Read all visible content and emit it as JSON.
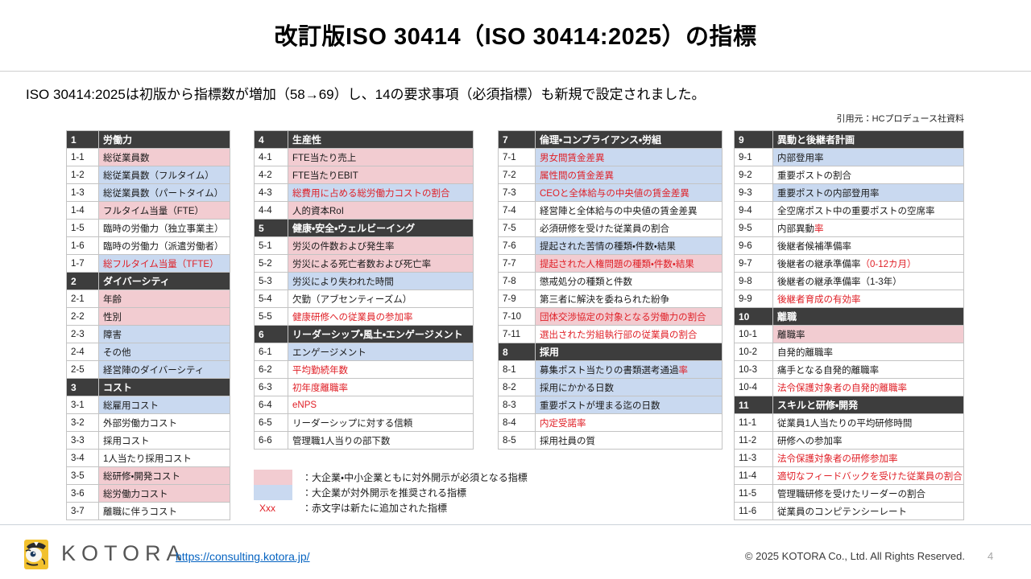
{
  "title": "改訂版ISO 30414（ISO 30414:2025）の指標",
  "subtitle": "ISO 30414:2025は初版から指標数が増加（58→69）し、14の要求事項（必須指標）も新規で設定されました。",
  "source_note": "引用元：HCプロデュース社資料",
  "colors": {
    "mandatory_pink": "#f2ccd1",
    "recommended_blue": "#c9d9f0",
    "section_header_bg": "#3d3d3d",
    "added_red": "#e01f26",
    "link_blue": "#0563c1",
    "logo_yellow": "#f2c12e"
  },
  "legend": [
    {
      "swatch": "pink",
      "label": "：大企業・中小企業ともに対外開示が必須となる指標"
    },
    {
      "swatch": "blue",
      "label": "：大企業が対外開示を推奨される指標"
    },
    {
      "swatch": "red-text",
      "swatch_text": "Xxx",
      "label": "：赤文字は新たに追加された指標"
    }
  ],
  "tables": [
    {
      "sections": [
        {
          "num": "1",
          "title": "労働力",
          "rows": [
            {
              "num": "1-1",
              "bg": "pink",
              "text": "総従業員数"
            },
            {
              "num": "1-2",
              "bg": "blue",
              "text": "総従業員数（フルタイム）"
            },
            {
              "num": "1-3",
              "bg": "blue",
              "text": "総従業員数（パートタイム）"
            },
            {
              "num": "1-4",
              "bg": "pink",
              "text": "フルタイム当量（FTE）"
            },
            {
              "num": "1-5",
              "bg": "none",
              "text": "臨時の労働力（独立事業主）"
            },
            {
              "num": "1-6",
              "bg": "none",
              "text": "臨時の労働力（派遣労働者）"
            },
            {
              "num": "1-7",
              "bg": "blue",
              "text": "総フルタイム当量（TFTE）",
              "red": true
            }
          ]
        },
        {
          "num": "2",
          "title": "ダイバーシティ",
          "rows": [
            {
              "num": "2-1",
              "bg": "pink",
              "text": "年齢"
            },
            {
              "num": "2-2",
              "bg": "pink",
              "text": "性別"
            },
            {
              "num": "2-3",
              "bg": "blue",
              "text": "障害"
            },
            {
              "num": "2-4",
              "bg": "blue",
              "text": "その他"
            },
            {
              "num": "2-5",
              "bg": "blue",
              "text": "経営陣のダイバーシティ"
            }
          ]
        },
        {
          "num": "3",
          "title": "コスト",
          "rows": [
            {
              "num": "3-1",
              "bg": "blue",
              "text": "総雇用コスト"
            },
            {
              "num": "3-2",
              "bg": "none",
              "text": "外部労働力コスト"
            },
            {
              "num": "3-3",
              "bg": "none",
              "text": "採用コスト"
            },
            {
              "num": "3-4",
              "bg": "none",
              "text": "1人当たり採用コスト"
            },
            {
              "num": "3-5",
              "bg": "pink",
              "text": "総研修・開発コスト"
            },
            {
              "num": "3-6",
              "bg": "pink",
              "text": "総労働力コスト"
            },
            {
              "num": "3-7",
              "bg": "none",
              "text": "離職に伴うコスト"
            }
          ]
        }
      ]
    },
    {
      "sections": [
        {
          "num": "4",
          "title": "生産性",
          "rows": [
            {
              "num": "4-1",
              "bg": "pink",
              "text": "FTE当たり売上"
            },
            {
              "num": "4-2",
              "bg": "pink",
              "text": "FTE当たりEBIT"
            },
            {
              "num": "4-3",
              "bg": "blue",
              "text": "総費用に占める総労働力コストの割合",
              "red": true
            },
            {
              "num": "4-4",
              "bg": "pink",
              "text": "人的資本RoI"
            }
          ]
        },
        {
          "num": "5",
          "title": "健康・安全・ウェルビーイング",
          "rows": [
            {
              "num": "5-1",
              "bg": "pink",
              "text": "労災の件数および発生率"
            },
            {
              "num": "5-2",
              "bg": "pink",
              "text": "労災による死亡者数および死亡率"
            },
            {
              "num": "5-3",
              "bg": "blue",
              "text": "労災により失われた時間"
            },
            {
              "num": "5-4",
              "bg": "none",
              "text": "欠勤（アブセンティーズム）"
            },
            {
              "num": "5-5",
              "bg": "none",
              "text": "健康研修への従業員の参加率",
              "red": true
            }
          ]
        },
        {
          "num": "6",
          "title": "リーダーシップ・風土・エンゲージメント",
          "rows": [
            {
              "num": "6-1",
              "bg": "blue",
              "text": "エンゲージメント"
            },
            {
              "num": "6-2",
              "bg": "none",
              "text": "平均勤続年数",
              "red": true
            },
            {
              "num": "6-3",
              "bg": "none",
              "text": "初年度離職率",
              "red": true
            },
            {
              "num": "6-4",
              "bg": "none",
              "text": "eNPS",
              "red": true
            },
            {
              "num": "6-5",
              "bg": "none",
              "text": "リーダーシップに対する信頼"
            },
            {
              "num": "6-6",
              "bg": "none",
              "text": "管理職1人当りの部下数"
            }
          ]
        }
      ]
    },
    {
      "sections": [
        {
          "num": "7",
          "title": "倫理・コンプライアンス・労組",
          "rows": [
            {
              "num": "7-1",
              "bg": "blue",
              "text": "男女間賃金差異",
              "red": true
            },
            {
              "num": "7-2",
              "bg": "blue",
              "text": "属性間の賃金差異",
              "red": true
            },
            {
              "num": "7-3",
              "bg": "blue",
              "text": "CEOと全体給与の中央値の賃金差異",
              "red": true
            },
            {
              "num": "7-4",
              "bg": "none",
              "text": "経営陣と全体給与の中央値の賃金差異"
            },
            {
              "num": "7-5",
              "bg": "none",
              "text": "必須研修を受けた従業員の割合"
            },
            {
              "num": "7-6",
              "bg": "blue",
              "text": "提起された苦情の種類・件数・結果"
            },
            {
              "num": "7-7",
              "bg": "pink",
              "text": "提起された人権問題の種類・件数・結果",
              "red": true
            },
            {
              "num": "7-8",
              "bg": "none",
              "text": "懲戒処分の種類と件数"
            },
            {
              "num": "7-9",
              "bg": "none",
              "text": "第三者に解決を委ねられた紛争"
            },
            {
              "num": "7-10",
              "bg": "pink",
              "text": "団体交渉協定の対象となる労働力の割合",
              "red": true
            },
            {
              "num": "7-11",
              "bg": "none",
              "text": "選出された労組執行部の従業員の割合",
              "red": true
            }
          ]
        },
        {
          "num": "8",
          "title": "採用",
          "rows": [
            {
              "num": "8-1",
              "bg": "blue",
              "parts": [
                {
                  "text": "募集ポスト当たりの書類選考通過",
                  "red": false
                },
                {
                  "text": "率",
                  "red": true
                }
              ]
            },
            {
              "num": "8-2",
              "bg": "blue",
              "text": "採用にかかる日数"
            },
            {
              "num": "8-3",
              "bg": "blue",
              "text": "重要ポストが埋まる迄の日数"
            },
            {
              "num": "8-4",
              "bg": "none",
              "text": "内定受諾率",
              "red": true
            },
            {
              "num": "8-5",
              "bg": "none",
              "text": "採用社員の質"
            }
          ]
        }
      ]
    },
    {
      "sections": [
        {
          "num": "9",
          "title": "異動と後継者計画",
          "rows": [
            {
              "num": "9-1",
              "bg": "blue",
              "text": "内部登用率"
            },
            {
              "num": "9-2",
              "bg": "none",
              "text": "重要ポストの割合"
            },
            {
              "num": "9-3",
              "bg": "blue",
              "text": "重要ポストの内部登用率"
            },
            {
              "num": "9-4",
              "bg": "none",
              "text": "全空席ポスト中の重要ポストの空席率"
            },
            {
              "num": "9-5",
              "bg": "none",
              "parts": [
                {
                  "text": "内部異動",
                  "red": false
                },
                {
                  "text": "率",
                  "red": true
                }
              ]
            },
            {
              "num": "9-6",
              "bg": "none",
              "text": "後継者候補準備率"
            },
            {
              "num": "9-7",
              "bg": "none",
              "parts": [
                {
                  "text": "後継者の継承準備率",
                  "red": false
                },
                {
                  "text": "（0-12カ月）",
                  "red": true
                }
              ]
            },
            {
              "num": "9-8",
              "bg": "none",
              "text": "後継者の継承準備率（1-3年）"
            },
            {
              "num": "9-9",
              "bg": "none",
              "text": "後継者育成の有効率",
              "red": true
            }
          ]
        },
        {
          "num": "10",
          "title": "離職",
          "rows": [
            {
              "num": "10-1",
              "bg": "pink",
              "text": "離職率"
            },
            {
              "num": "10-2",
              "bg": "none",
              "text": "自発的離職率"
            },
            {
              "num": "10-3",
              "bg": "none",
              "text": "痛手となる自発的離職率"
            },
            {
              "num": "10-4",
              "bg": "none",
              "text": "法令保護対象者の自発的離職率",
              "red": true
            }
          ]
        },
        {
          "num": "11",
          "title": "スキルと研修・開発",
          "rows": [
            {
              "num": "11-1",
              "bg": "none",
              "text": "従業員1人当たりの平均研修時間"
            },
            {
              "num": "11-2",
              "bg": "none",
              "text": "研修への参加率"
            },
            {
              "num": "11-3",
              "bg": "none",
              "text": "法令保護対象者の研修参加率",
              "red": true
            },
            {
              "num": "11-4",
              "bg": "none",
              "text": "適切なフィードバックを受けた従業員の割合",
              "red": true
            },
            {
              "num": "11-5",
              "bg": "none",
              "text": "管理職研修を受けたリーダーの割合"
            },
            {
              "num": "11-6",
              "bg": "none",
              "text": "従業員のコンピテンシーレート"
            }
          ]
        }
      ]
    }
  ],
  "footer": {
    "brand": "KOTORA",
    "url": "https://consulting.kotora.jp/",
    "copyright": "© 2025 KOTORA Co., Ltd. All Rights Reserved.",
    "page_number": "4"
  }
}
